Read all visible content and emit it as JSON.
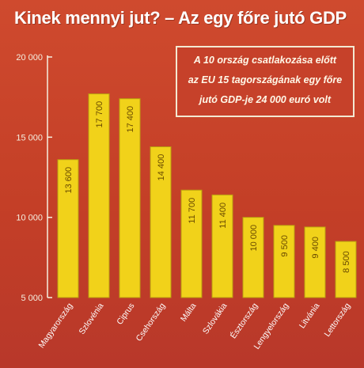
{
  "title": "Kinek mennyi jut? – Az egy főre jutó GDP",
  "note": {
    "lines": [
      "A 10 ország csatlakozása előtt",
      "az EU 15 tagországának egy főre",
      "jutó GDP-je 24 000 euró volt"
    ]
  },
  "colors": {
    "background": "#c9432a",
    "bar": "#f1d21a",
    "bar_edge": "#b99e10",
    "axis": "#f5efe0"
  },
  "chart_data": {
    "type": "bar",
    "title": "Kinek mennyi jut? – Az egy főre jutó GDP",
    "xlabel": "",
    "ylabel": "",
    "ylim": [
      5000,
      20000
    ],
    "yticks": [
      5000,
      10000,
      15000,
      20000
    ],
    "ytick_labels": [
      "5 000",
      "10 000",
      "15 000",
      "20 000"
    ],
    "grid": false,
    "categories": [
      "Magyarország",
      "Szlovénia",
      "Ciprus",
      "Csehország",
      "Málta",
      "Szlovákia",
      "Észtország",
      "Lengyelország",
      "Litvánia",
      "Lettország"
    ],
    "values": [
      13600,
      17700,
      17400,
      14400,
      11700,
      11400,
      10000,
      9500,
      9400,
      8500
    ],
    "value_labels": [
      "13 600",
      "17 700",
      "17 400",
      "14 400",
      "11 700",
      "11 400",
      "10 000",
      "9 500",
      "9 400",
      "8 500"
    ]
  }
}
